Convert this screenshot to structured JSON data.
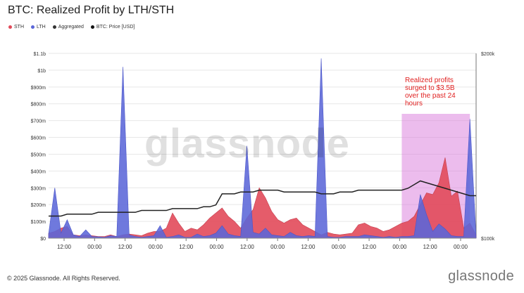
{
  "title": "BTC: Realized Profit by LTH/STH",
  "legend": [
    {
      "label": "STH",
      "color": "#e24a5a"
    },
    {
      "label": "LTH",
      "color": "#5b66d8"
    },
    {
      "label": "Aggregated",
      "color": "#333333"
    },
    {
      "label": "BTC: Price [USD]",
      "color": "#111111"
    }
  ],
  "watermark": "glassnode",
  "annotation": "Realized profits surged to $3.5B over the past 24 hours",
  "footer": "© 2025 Glassnode. All Rights Reserved.",
  "logo": "glassnode",
  "colors": {
    "sth": "#e24a5a",
    "lth": "#5b66d8",
    "price": "#222222",
    "highlight": "#d97adb",
    "grid": "#e7e7e7",
    "axis": "#444444"
  },
  "chart_data": {
    "type": "area",
    "title": "BTC: Realized Profit by LTH/STH",
    "y_left_ticks": [
      "$0",
      "$100m",
      "$200m",
      "$300m",
      "$400m",
      "$500m",
      "$600m",
      "$700m",
      "$800m",
      "$900m",
      "$1b",
      "$1.1b"
    ],
    "y_left_range": [
      0,
      1100
    ],
    "y_right_ticks": [
      "$100k",
      "$200k"
    ],
    "y_right_range": [
      100,
      200
    ],
    "x_ticks": [
      "12:00",
      "00:00",
      "12:00",
      "00:00",
      "12:00",
      "00:00",
      "12:00",
      "00:00",
      "12:00",
      "00:00",
      "12:00",
      "00:00",
      "12:00",
      "00:00"
    ],
    "series": [
      {
        "name": "LTH",
        "values": [
          25,
          300,
          30,
          110,
          20,
          10,
          50,
          10,
          8,
          5,
          15,
          10,
          1020,
          20,
          10,
          5,
          10,
          15,
          75,
          5,
          10,
          20,
          5,
          5,
          25,
          10,
          15,
          30,
          75,
          25,
          15,
          10,
          550,
          35,
          25,
          60,
          20,
          15,
          10,
          35,
          15,
          10,
          15,
          10,
          1070,
          10,
          5,
          5,
          10,
          10,
          10,
          20,
          15,
          10,
          5,
          10,
          5,
          10,
          10,
          15,
          260,
          140,
          40,
          85,
          55,
          15,
          10,
          10,
          710,
          10
        ]
      },
      {
        "name": "STH",
        "values": [
          30,
          40,
          60,
          70,
          20,
          15,
          20,
          15,
          10,
          10,
          20,
          10,
          20,
          25,
          20,
          15,
          30,
          40,
          40,
          60,
          150,
          90,
          40,
          60,
          50,
          80,
          120,
          150,
          180,
          130,
          100,
          60,
          120,
          170,
          300,
          240,
          160,
          110,
          90,
          110,
          120,
          80,
          60,
          40,
          20,
          35,
          25,
          20,
          25,
          30,
          80,
          90,
          70,
          60,
          40,
          50,
          70,
          90,
          100,
          130,
          200,
          270,
          260,
          330,
          480,
          250,
          280,
          60,
          90,
          20
        ]
      },
      {
        "name": "BTC: Price [USD]",
        "values": [
          112,
          112,
          112,
          113,
          113,
          113,
          113,
          113,
          114,
          114,
          114,
          114,
          114,
          114,
          114,
          115,
          115,
          115,
          115,
          115,
          116,
          116,
          116,
          116,
          116,
          117,
          117,
          118,
          124,
          124,
          124,
          125,
          125,
          125,
          126,
          126,
          126,
          126,
          125,
          125,
          125,
          125,
          125,
          125,
          124,
          124,
          124,
          125,
          125,
          125,
          126,
          126,
          126,
          126,
          126,
          126,
          126,
          126,
          127,
          129,
          131,
          130,
          129,
          128,
          127,
          126,
          125,
          124,
          123,
          123
        ]
      }
    ],
    "highlight_range_index": [
      57,
      68
    ],
    "grid": true,
    "legend_position": "top-left"
  }
}
